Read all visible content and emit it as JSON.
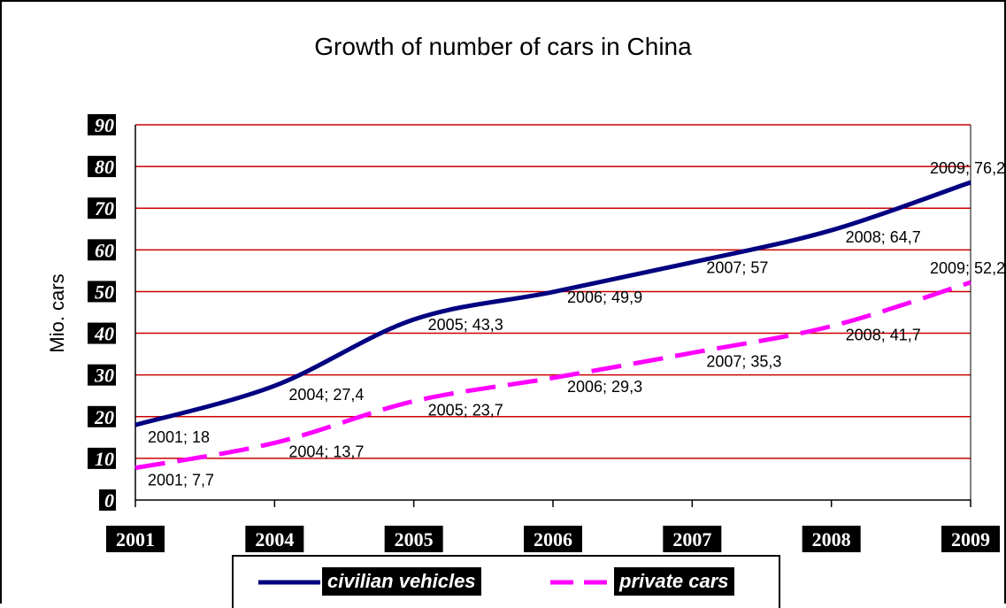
{
  "chart_data": {
    "type": "line",
    "title": "Growth of number of cars in China",
    "xlabel": "",
    "ylabel": "Mio. cars",
    "categories": [
      "2001",
      "2004",
      "2005",
      "2006",
      "2007",
      "2008",
      "2009"
    ],
    "ylim": [
      0,
      90
    ],
    "yticks": [
      "0",
      "10",
      "20",
      "30",
      "40",
      "50",
      "60",
      "70",
      "80",
      "90"
    ],
    "grid": true,
    "legend_position": "bottom",
    "series": [
      {
        "name": "civilian vehicles",
        "values": [
          18,
          27.4,
          43.3,
          49.9,
          57,
          64.7,
          76.2
        ],
        "labels": [
          "2001; 18",
          "2004; 27,4",
          "2005; 43,3",
          "2006; 49,9",
          "2007; 57",
          "2008; 64,7",
          "2009; 76,2"
        ],
        "color": "#000080",
        "style": "solid"
      },
      {
        "name": "private cars",
        "values": [
          7.7,
          13.7,
          23.7,
          29.3,
          35.3,
          41.7,
          52.2
        ],
        "labels": [
          "2001; 7,7",
          "2004; 13,7",
          "2005; 23,7",
          "2006; 29,3",
          "2007; 35,3",
          "2008; 41,7",
          "2009; 52,2"
        ],
        "color": "#ff00ff",
        "style": "dashed"
      }
    ],
    "gridline_color": "#cc0000"
  }
}
